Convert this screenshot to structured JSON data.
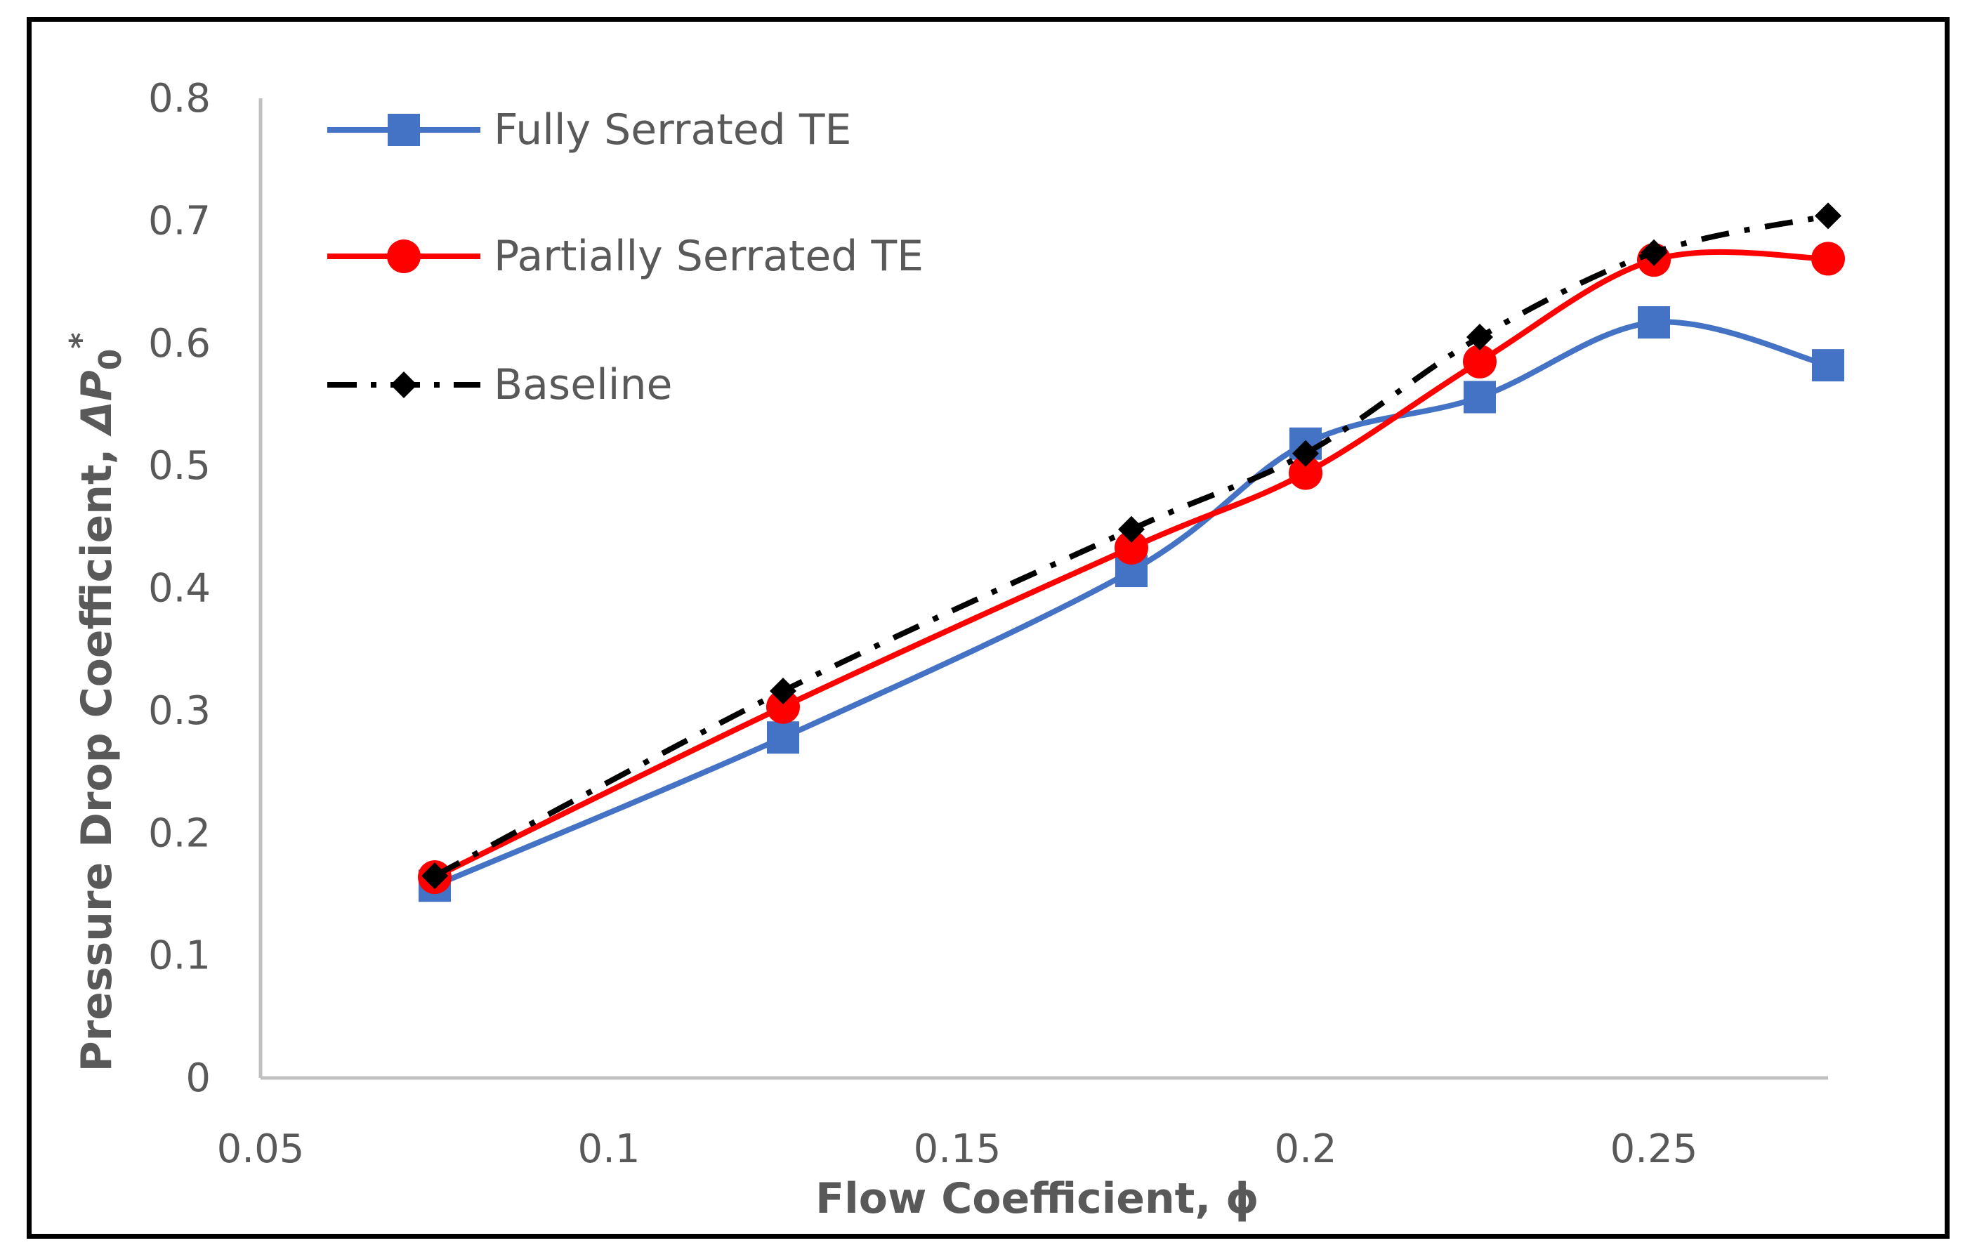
{
  "chart_data": {
    "type": "line",
    "title": "",
    "xlabel": "Flow Coefficient, ϕ",
    "ylabel_prefix": "Pressure Drop Coefficient, ",
    "ylabel_symbol": "ΔP",
    "ylabel_subscript": "0",
    "ylabel_superscript": "*",
    "xlim": [
      0.05,
      0.275
    ],
    "ylim": [
      0,
      0.8
    ],
    "xticks": [
      0.05,
      0.1,
      0.15,
      0.2,
      0.25
    ],
    "xtick_labels": [
      "0.05",
      "0.1",
      "0.15",
      "0.2",
      "0.25"
    ],
    "yticks": [
      0,
      0.1,
      0.2,
      0.3,
      0.4,
      0.5,
      0.6,
      0.7,
      0.8
    ],
    "ytick_labels": [
      "0",
      "0.1",
      "0.2",
      "0.3",
      "0.4",
      "0.5",
      "0.6",
      "0.7",
      "0.8"
    ],
    "grid": false,
    "legend_position": "top-left",
    "series": [
      {
        "name": "Fully Serrated TE",
        "color": "#4472C4",
        "marker": "square",
        "line_style": "solid",
        "x": [
          0.075,
          0.125,
          0.175,
          0.2,
          0.225,
          0.25,
          0.275
        ],
        "y": [
          0.157,
          0.278,
          0.414,
          0.518,
          0.556,
          0.617,
          0.582
        ]
      },
      {
        "name": "Partially Serrated TE",
        "color": "#FF0000",
        "marker": "circle",
        "line_style": "solid",
        "x": [
          0.075,
          0.125,
          0.175,
          0.2,
          0.225,
          0.25,
          0.275
        ],
        "y": [
          0.164,
          0.303,
          0.433,
          0.494,
          0.585,
          0.668,
          0.669
        ]
      },
      {
        "name": "Baseline",
        "color": "#000000",
        "marker": "diamond",
        "line_style": "dash-dot",
        "x": [
          0.075,
          0.125,
          0.175,
          0.2,
          0.225,
          0.25,
          0.275
        ],
        "y": [
          0.165,
          0.316,
          0.448,
          0.51,
          0.605,
          0.674,
          0.704
        ]
      }
    ]
  }
}
